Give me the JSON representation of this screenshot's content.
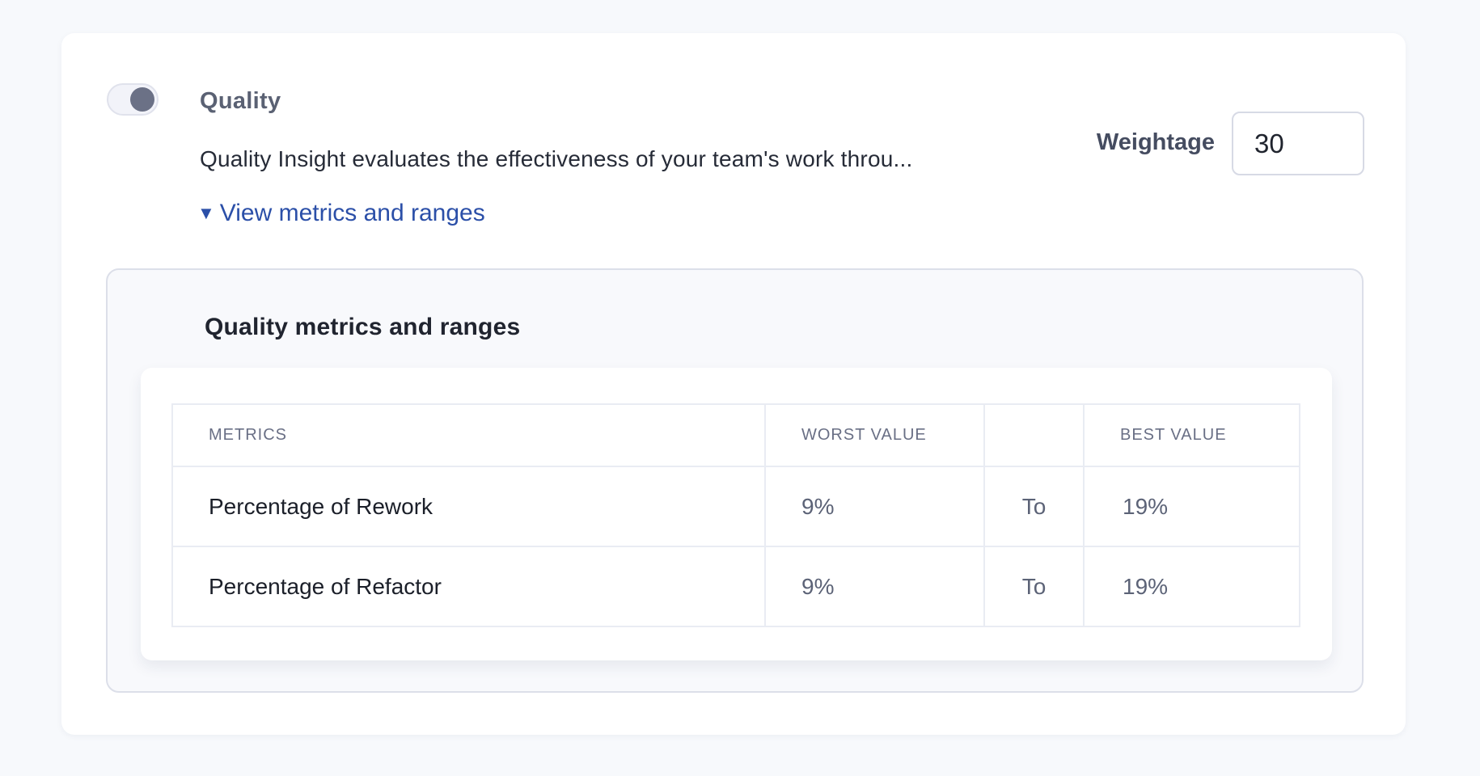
{
  "section": {
    "title": "Quality",
    "description": "Quality Insight evaluates the effectiveness of your team's work throu...",
    "toggle_state": "on",
    "view_link_label": "View metrics and ranges",
    "collapse_icon": "▼",
    "weightage_label": "Weightage",
    "weightage_value": "30"
  },
  "panel": {
    "heading": "Quality metrics and ranges",
    "table": {
      "headers": [
        "METRICS",
        "WORST VALUE",
        "",
        "BEST VALUE"
      ],
      "rows": [
        {
          "metric": "Percentage of Rework",
          "worst": "9%",
          "to": "To",
          "best": "19%"
        },
        {
          "metric": "Percentage of Refactor",
          "worst": "9%",
          "to": "To",
          "best": "19%"
        }
      ]
    }
  },
  "colors": {
    "accent_blue": "#2b4fa8",
    "toggle_knob": "#6b7186",
    "page_background": "#f7f9fc"
  }
}
